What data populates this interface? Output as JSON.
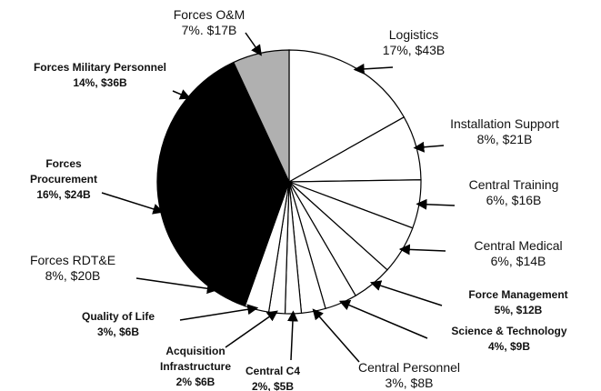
{
  "chart_data": {
    "type": "pie",
    "categories": [
      "Logistics",
      "Installation Support",
      "Central Training",
      "Central Medical",
      "Force Management",
      "Science & Technology",
      "Central Personnel",
      "Central C4",
      "Acquisition Infrastructure",
      "Quality of Life",
      "Forces RDT&E",
      "Forces Procurement",
      "Forces Military Personnel",
      "Forces O&M"
    ],
    "values": [
      17,
      8,
      6,
      6,
      5,
      4,
      3,
      2,
      2,
      3,
      8,
      16,
      14,
      7
    ],
    "value_labels": [
      "17%, $43B",
      "8%, $21B",
      "6%, $16B",
      "6%, $14B",
      "5%, $12B",
      "4%, $9B",
      "3%, $8B",
      "2%, $5B",
      "2% $6B",
      "3%, $6B",
      "8%, $20B",
      "16%, $24B",
      "14%, $36B",
      "7%. $17B"
    ],
    "colors": [
      "#ffffff",
      "#ffffff",
      "#ffffff",
      "#ffffff",
      "#ffffff",
      "#ffffff",
      "#ffffff",
      "#ffffff",
      "#ffffff",
      "#ffffff",
      "#000000",
      "#000000",
      "#000000",
      "#b0b0b0"
    ]
  }
}
